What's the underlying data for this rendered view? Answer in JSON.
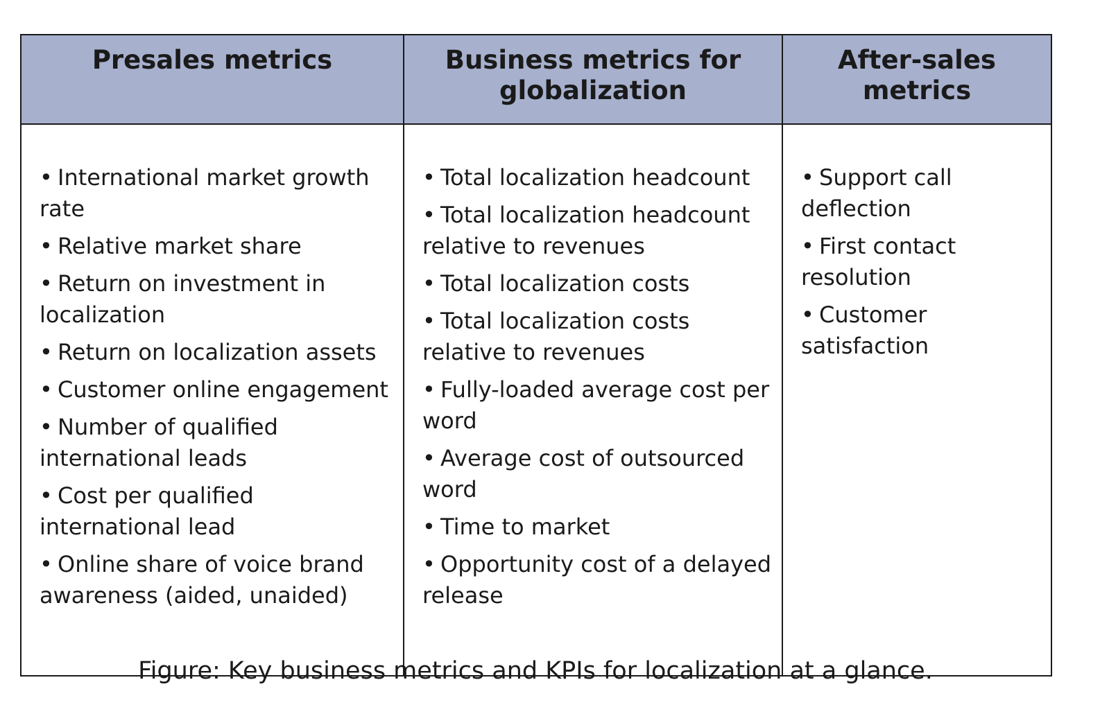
{
  "table": {
    "columns": [
      {
        "header": "Presales metrics",
        "items": [
          "International market growth rate",
          "Relative market share",
          "Return on investment in localization",
          "Return on localization assets",
          "Customer online engagement",
          "Number of qualified international leads",
          "Cost per qualified international lead",
          "Online share of voice brand awareness (aided, unaided)"
        ]
      },
      {
        "header": "Business metrics for globalization",
        "items": [
          "Total localization headcount",
          "Total localization headcount relative to revenues",
          "Total localization costs",
          "Total localization costs relative to revenues",
          "Fully-loaded average cost per word",
          "Average cost of outsourced word",
          "Time to market",
          "Opportunity cost of a delayed release"
        ]
      },
      {
        "header": "After-sales metrics",
        "items": [
          "Support call deflection",
          "First contact resolution",
          "Customer satisfaction"
        ]
      }
    ],
    "bullet": "•",
    "header_bg": "#a7b0cd"
  },
  "caption": "Figure: Key business metrics and KPIs for localization at a glance."
}
